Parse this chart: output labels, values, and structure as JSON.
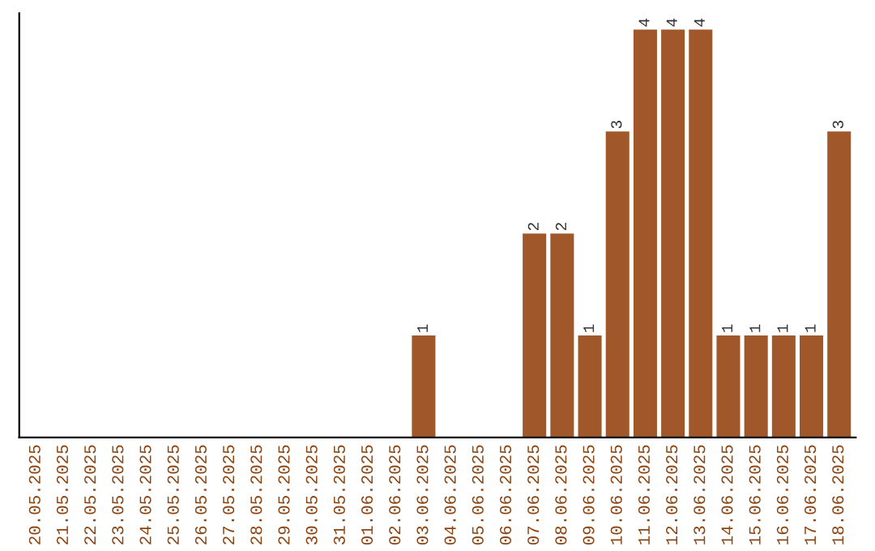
{
  "chart_data": {
    "type": "bar",
    "categories": [
      "20.05.2025",
      "21.05.2025",
      "22.05.2025",
      "23.05.2025",
      "24.05.2025",
      "25.05.2025",
      "26.05.2025",
      "27.05.2025",
      "28.05.2025",
      "29.05.2025",
      "30.05.2025",
      "31.05.2025",
      "01.06.2025",
      "02.06.2025",
      "03.06.2025",
      "04.06.2025",
      "05.06.2025",
      "06.06.2025",
      "07.06.2025",
      "08.06.2025",
      "09.06.2025",
      "10.06.2025",
      "11.06.2025",
      "12.06.2025",
      "13.06.2025",
      "14.06.2025",
      "15.06.2025",
      "16.06.2025",
      "17.06.2025",
      "18.06.2025"
    ],
    "values": [
      null,
      null,
      null,
      null,
      null,
      null,
      null,
      null,
      null,
      null,
      null,
      null,
      null,
      null,
      1,
      null,
      null,
      null,
      2,
      2,
      1,
      3,
      4,
      4,
      4,
      1,
      1,
      1,
      1,
      3
    ],
    "data_labels": true,
    "color": "#a0582a",
    "tick_labels": "x",
    "grid": false,
    "legend": false
  }
}
